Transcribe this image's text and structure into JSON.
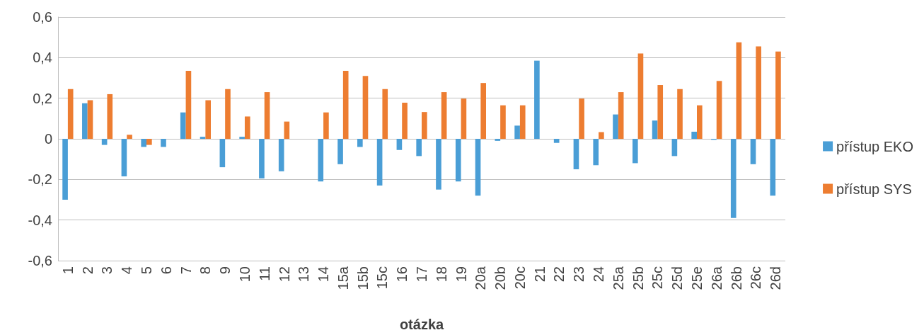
{
  "chart_data": {
    "type": "bar",
    "xlabel": "otázka",
    "categories": [
      "1",
      "2",
      "3",
      "4",
      "5",
      "6",
      "7",
      "8",
      "9",
      "10",
      "11",
      "12",
      "13",
      "14",
      "15a",
      "15b",
      "15c",
      "16",
      "17",
      "18",
      "19",
      "20a",
      "20b",
      "20c",
      "21",
      "22",
      "23",
      "24",
      "25a",
      "25b",
      "25c",
      "25d",
      "25e",
      "26a",
      "26b",
      "26c",
      "26d"
    ],
    "series": [
      {
        "name": "přístup EKO",
        "color": "#4a9ed6",
        "values": [
          -0.3,
          0.175,
          -0.03,
          -0.185,
          -0.04,
          -0.04,
          0.13,
          0.01,
          -0.14,
          0.01,
          -0.195,
          -0.16,
          null,
          -0.21,
          -0.125,
          -0.04,
          -0.23,
          -0.055,
          -0.085,
          -0.25,
          -0.21,
          -0.28,
          -0.01,
          0.065,
          0.385,
          -0.02,
          -0.15,
          -0.13,
          0.12,
          -0.12,
          0.09,
          -0.085,
          0.035,
          -0.005,
          -0.39,
          -0.125,
          -0.28
        ]
      },
      {
        "name": "přístup SYS",
        "color": "#ed7d31",
        "values": [
          0.245,
          0.19,
          0.22,
          0.02,
          -0.03,
          null,
          0.335,
          0.19,
          0.245,
          0.11,
          0.23,
          0.085,
          null,
          0.13,
          0.335,
          0.31,
          0.245,
          0.178,
          0.132,
          0.23,
          0.198,
          0.275,
          0.165,
          0.165,
          null,
          null,
          0.198,
          0.033,
          0.23,
          0.42,
          0.265,
          0.245,
          0.165,
          0.285,
          0.475,
          0.455,
          0.43
        ]
      }
    ],
    "ylim": [
      -0.6,
      0.6
    ],
    "yticks": [
      {
        "value": -0.6,
        "label": "-0,6"
      },
      {
        "value": -0.4,
        "label": "-0,4"
      },
      {
        "value": -0.2,
        "label": "-0,2"
      },
      {
        "value": 0,
        "label": "0"
      },
      {
        "value": 0.2,
        "label": "0,2"
      },
      {
        "value": 0.4,
        "label": "0,4"
      },
      {
        "value": 0.6,
        "label": "0,6"
      }
    ],
    "grid": "y",
    "legend": "right"
  }
}
